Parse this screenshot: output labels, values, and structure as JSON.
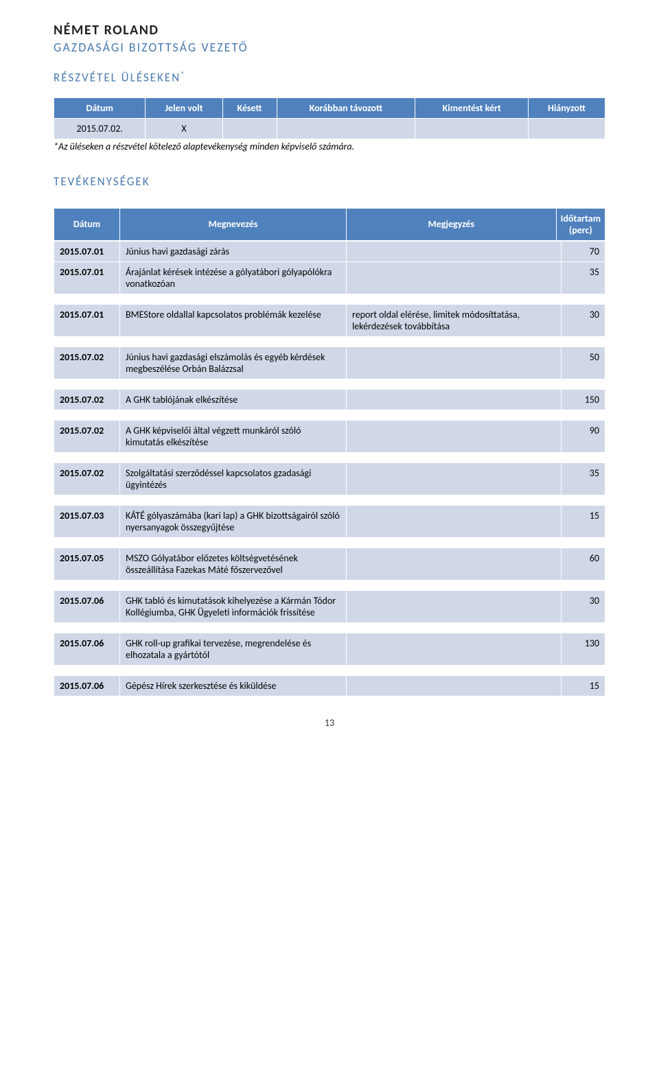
{
  "header": {
    "person_name": "NÉMET ROLAND",
    "person_role": "GAZDASÁGI BIZOTTSÁG VEZETŐ"
  },
  "attendance": {
    "section_title": "RÉSZVÉTEL ÜLÉSEKEN",
    "columns": [
      "Dátum",
      "Jelen volt",
      "Késett",
      "Korábban távozott",
      "Kimentést kért",
      "Hiányzott"
    ],
    "row": {
      "date": "2015.07.02.",
      "present": "X",
      "late": "",
      "left_early": "",
      "excused": "",
      "absent": ""
    },
    "footnote": "*Az üléseken a részvétel kötelező alaptevékenység minden képviselő számára."
  },
  "activities": {
    "section_title": "TEVÉKENYSÉGEK",
    "columns": [
      "Dátum",
      "Megnevezés",
      "Megjegyzés",
      "Időtartam (perc)"
    ],
    "blocks": [
      [
        {
          "date": "2015.07.01",
          "name": "Június havi gazdasági zárás",
          "note": "",
          "duration": "70"
        },
        {
          "date": "2015.07.01",
          "name": "Árajánlat kérések intézése a gólyatábori gólyapólókra vonatkozóan",
          "note": "",
          "duration": "35"
        }
      ],
      [
        {
          "date": "2015.07.01",
          "name": "BMEStore oldallal kapcsolatos problémák kezelése",
          "note": "report oldal elérése, limitek módosíttatása, lekérdezések továbbítása",
          "duration": "30"
        }
      ],
      [
        {
          "date": "2015.07.02",
          "name": "Június havi gazdasági elszámolás és egyéb kérdések megbeszélése Orbán Balázzsal",
          "note": "",
          "duration": "50"
        }
      ],
      [
        {
          "date": "2015.07.02",
          "name": "A GHK tablójának elkészítése",
          "note": "",
          "duration": "150"
        }
      ],
      [
        {
          "date": "2015.07.02",
          "name": "A GHK képviselői által végzett munkáról szóló kimutatás elkészítése",
          "note": "",
          "duration": "90"
        }
      ],
      [
        {
          "date": "2015.07.02",
          "name": "Szolgáltatási szerződéssel kapcsolatos gzadasági ügyintézés",
          "note": "",
          "duration": "35"
        }
      ],
      [
        {
          "date": "2015.07.03",
          "name": "KÁTÉ gólyaszámába (kari lap) a GHK bizottságairól szóló nyersanyagok összegyűjtése",
          "note": "",
          "duration": "15"
        }
      ],
      [
        {
          "date": "2015.07.05",
          "name": "MSZO Gólyatábor előzetes költségvetésének összeállítása Fazekas Máté főszervezővel",
          "note": "",
          "duration": "60"
        }
      ],
      [
        {
          "date": "2015.07.06",
          "name": "GHK tabló és kimutatások kihelyezése a Kármán Tódor Kollégiumba, GHK Ügyeleti információk frissítése",
          "note": "",
          "duration": "30"
        }
      ],
      [
        {
          "date": "2015.07.06",
          "name": "GHK roll-up grafikai tervezése, megrendelése és elhozatala a gyártótól",
          "note": "",
          "duration": "130"
        }
      ],
      [
        {
          "date": "2015.07.06",
          "name": "Gépész Hírek szerkesztése és kiküldése",
          "note": "",
          "duration": "15"
        }
      ]
    ]
  },
  "page_number": "13"
}
